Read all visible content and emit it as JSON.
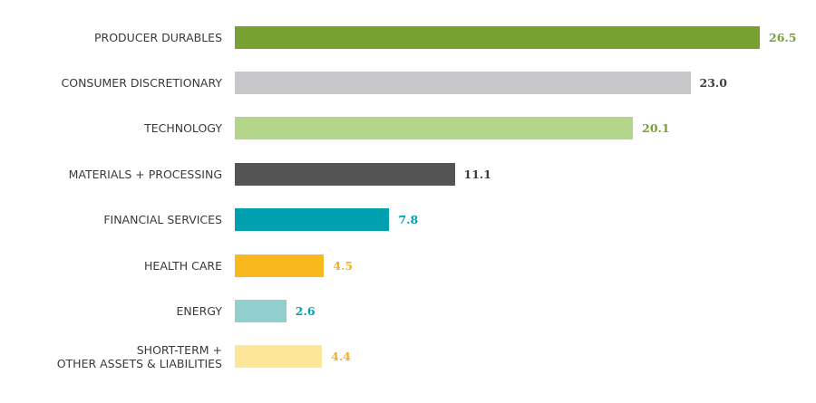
{
  "chart_data": {
    "type": "bar",
    "orientation": "horizontal",
    "title": "",
    "xlabel": "",
    "ylabel": "",
    "grid": false,
    "xlim": [
      0,
      26.5
    ],
    "categories": [
      "PRODUCER DURABLES",
      "CONSUMER DISCRETIONARY",
      "TECHNOLOGY",
      "MATERIALS + PROCESSING",
      "FINANCIAL SERVICES",
      "HEALTH CARE",
      "ENERGY",
      "SHORT-TERM +\nOTHER ASSETS & LIABILITIES"
    ],
    "values": [
      26.5,
      23.0,
      20.1,
      11.1,
      7.8,
      4.5,
      2.6,
      4.4
    ],
    "value_labels": [
      "26.5",
      "23.0",
      "20.1",
      "11.1",
      "7.8",
      "4.5",
      "2.6",
      "4.4"
    ],
    "bar_colors": [
      "#77a232",
      "#c8c8ca",
      "#b4d68b",
      "#545454",
      "#00a0ae",
      "#f9b81e",
      "#91d0cf",
      "#fde697"
    ],
    "label_colors": [
      "#77a232",
      "#3d3d3d",
      "#77a232",
      "#3d3d3d",
      "#00a0ae",
      "#f6b01e",
      "#00a0ae",
      "#f6b01e"
    ]
  }
}
